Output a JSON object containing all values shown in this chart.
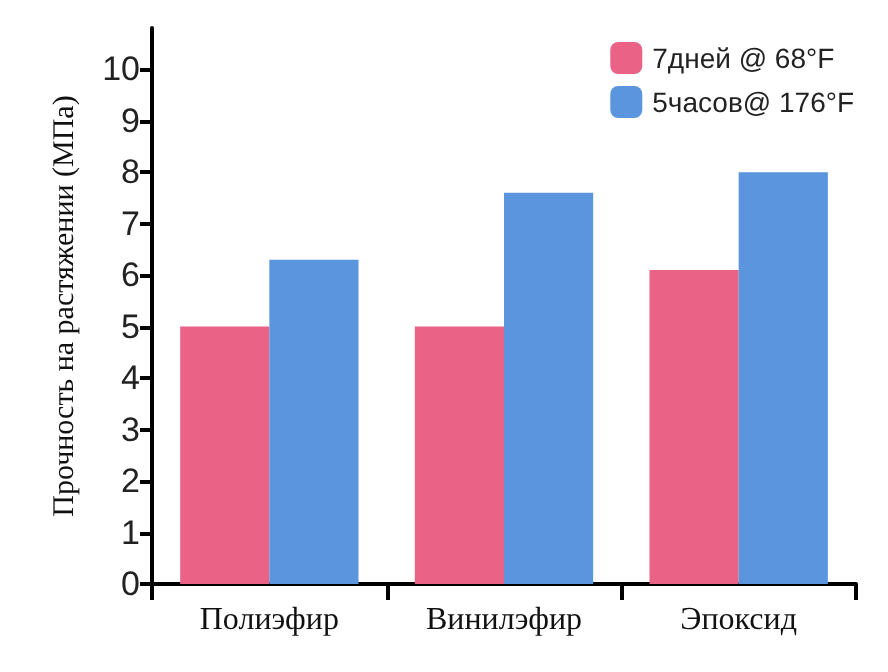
{
  "chart_data": {
    "type": "bar",
    "ylabel": "Прочность на растяжении (МПа)",
    "categories": [
      "Полиэфир",
      "Винилэфир",
      "Эпоксид"
    ],
    "series": [
      {
        "name": "7дней @ 68°F",
        "color": "#ea6285",
        "values": [
          5.0,
          5.0,
          6.1
        ]
      },
      {
        "name": "5часов@ 176°F",
        "color": "#5b95de",
        "values": [
          6.3,
          7.6,
          8.0
        ]
      }
    ],
    "ylim": [
      0,
      10.8
    ],
    "yticks": [
      0,
      1,
      2,
      3,
      4,
      5,
      6,
      7,
      8,
      9,
      10
    ],
    "grid": false,
    "legend": "top right"
  }
}
